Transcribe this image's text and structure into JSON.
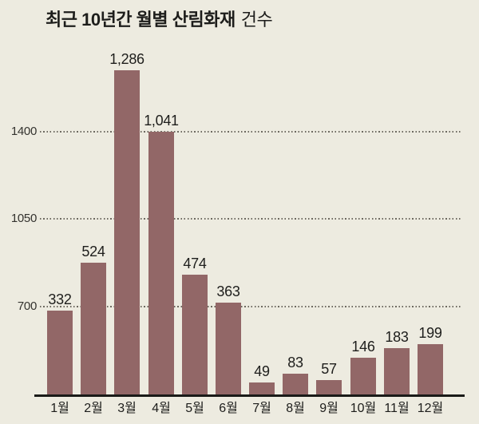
{
  "title": {
    "main": "최근 10년간 월별 산림화재",
    "suffix": "건수"
  },
  "colors": {
    "background": "#edebe0",
    "bar": "#926767",
    "axis": "#1a1a18",
    "grid": "#56524a",
    "text": "#1d1d1b"
  },
  "chart_data": {
    "type": "bar",
    "title": "최근 10년간 월별 산림화재 건수",
    "categories": [
      "1월",
      "2월",
      "3월",
      "4월",
      "5월",
      "6월",
      "7월",
      "8월",
      "9월",
      "10월",
      "11월",
      "12월"
    ],
    "values": [
      332,
      524,
      1286,
      1041,
      474,
      363,
      49,
      83,
      57,
      146,
      183,
      199
    ],
    "value_labels": [
      "332",
      "524",
      "1,286",
      "1,041",
      "474",
      "363",
      "49",
      "83",
      "57",
      "146",
      "183",
      "199"
    ],
    "y_tick_labels": [
      "1400",
      "1050",
      "700"
    ],
    "xlabel": "",
    "ylabel": "",
    "grid": "horizontal-dotted",
    "legend": "none"
  }
}
